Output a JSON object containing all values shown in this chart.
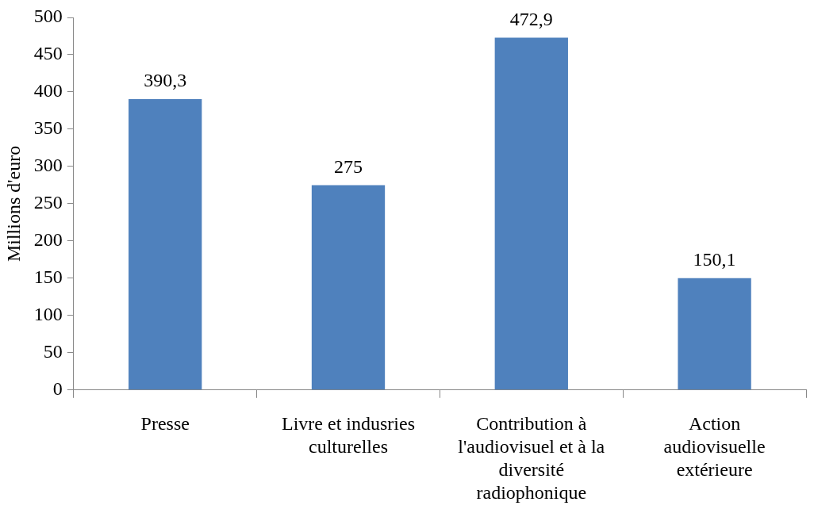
{
  "chart_data": {
    "type": "bar",
    "ylabel": "Millions d'euro",
    "categories": [
      "Presse",
      "Livre et indusries culturelles",
      "Contribution à l'audiovisuel et à la diversité radiophonique",
      "Action audiovisuelle extérieure"
    ],
    "values": [
      390.3,
      275,
      472.9,
      150.1
    ],
    "color": "#4f81bd",
    "ylim": [
      0,
      500
    ],
    "yticks": [
      0,
      50,
      100,
      150,
      200,
      250,
      300,
      350,
      400,
      450,
      500
    ],
    "value_labels": [
      "390,3",
      "275",
      "472,9",
      "150,1"
    ],
    "grid": false,
    "legend": false
  }
}
